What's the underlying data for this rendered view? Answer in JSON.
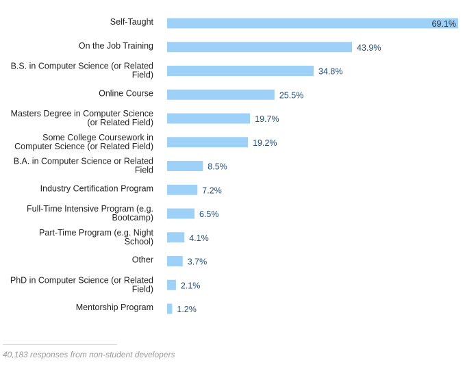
{
  "chart_data": {
    "type": "bar",
    "orientation": "horizontal",
    "categories": [
      "Self-Taught",
      "On the Job Training",
      "B.S. in Computer Science (or Related Field)",
      "Online Course",
      "Masters Degree in Computer Science (or Related Field)",
      "Some College Coursework in Computer Science (or Related Field)",
      "B.A. in Computer Science or Related Field",
      "Industry Certification Program",
      "Full-Time Intensive Program (e.g. Bootcamp)",
      "Part-Time Program (e.g. Night School)",
      "Other",
      "PhD in Computer Science (or Related Field)",
      "Mentorship Program"
    ],
    "category_lines": [
      [
        "Self-Taught"
      ],
      [
        "On the Job Training"
      ],
      [
        "B.S. in Computer Science (or Related",
        "Field)"
      ],
      [
        "Online Course"
      ],
      [
        "Masters Degree in Computer Science",
        "(or Related Field)"
      ],
      [
        "Some College Coursework in",
        "Computer Science (or Related Field)"
      ],
      [
        "B.A. in Computer Science or Related",
        "Field"
      ],
      [
        "Industry Certification Program"
      ],
      [
        "Full-Time Intensive Program (e.g.",
        "Bootcamp)"
      ],
      [
        "Part-Time Program (e.g. Night",
        "School)"
      ],
      [
        "Other"
      ],
      [
        "PhD in Computer Science (or Related",
        "Field)"
      ],
      [
        "Mentorship Program"
      ]
    ],
    "values": [
      69.1,
      43.9,
      34.8,
      25.5,
      19.7,
      19.2,
      8.5,
      7.2,
      6.5,
      4.1,
      3.7,
      2.1,
      1.2
    ],
    "value_labels": [
      "69.1%",
      "43.9%",
      "34.8%",
      "25.5%",
      "19.7%",
      "19.2%",
      "8.5%",
      "7.2%",
      "6.5%",
      "4.1%",
      "3.7%",
      "2.1%",
      "1.2%"
    ],
    "unit": "%",
    "xlim": [
      0,
      69.1
    ],
    "grid": false,
    "legend": "none",
    "colors": {
      "bar": "#9dd1f8",
      "value_text": "#224f80",
      "value_text_inside": "#22313f",
      "label_text": "#222222"
    }
  },
  "footnote": "40,183 responses from non-student developers"
}
